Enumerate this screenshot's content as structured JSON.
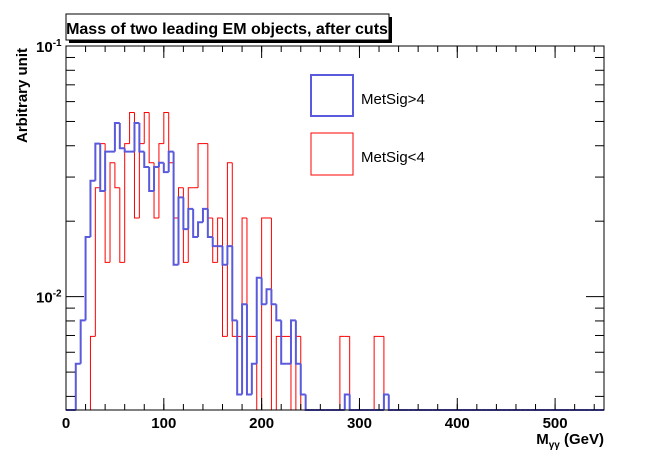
{
  "chart_data": {
    "type": "histogram",
    "title": "Mass of two leading EM objects, after cuts",
    "xlabel_main": "M",
    "xlabel_sub": "γγ",
    "xlabel_unit": " (GeV)",
    "ylabel": "Arbitrary unit",
    "xlim": [
      0,
      550
    ],
    "ylim": [
      0.00353,
      0.1
    ],
    "yscale": "log",
    "bin_width": 5,
    "x_ticks": [
      "0",
      "100",
      "200",
      "300",
      "400",
      "500"
    ],
    "x_tick_values": [
      0,
      100,
      200,
      300,
      400,
      500
    ],
    "y_ticks": [
      {
        "base": "10",
        "exp": "-1",
        "value": 0.1
      },
      {
        "base": "10",
        "exp": "-2",
        "value": 0.01
      }
    ],
    "legend_position": "top-center",
    "series": [
      {
        "name": "MetSig<4",
        "color": "#ff0000",
        "bin_start": 0,
        "values": [
          0,
          0,
          0,
          0,
          0,
          0.00694,
          0.0272,
          0.0408,
          0.0137,
          0.0342,
          0.0272,
          0.0137,
          0.0408,
          0.0543,
          0.0206,
          0.0408,
          0.0543,
          0.0342,
          0.0206,
          0.0408,
          0.0543,
          0.0342,
          0.0206,
          0.0272,
          0.0137,
          0.0272,
          0.0272,
          0.0408,
          0.0408,
          0.0206,
          0.0137,
          0.0206,
          0.00694,
          0.0342,
          0.00694,
          0.00694,
          0.0206,
          0.00694,
          0.00694,
          0,
          0.0206,
          0.0206,
          0,
          0.00694,
          0.00694,
          0.00694,
          0,
          0.00694,
          0,
          0,
          0,
          0,
          0,
          0,
          0,
          0,
          0.00694,
          0.00694,
          0,
          0,
          0,
          0,
          0,
          0.00694,
          0.00694,
          0
        ]
      },
      {
        "name": "MetSig>4",
        "color": "#5a5adc",
        "bin_start": 0,
        "values": [
          0,
          0,
          0.0054,
          0.00804,
          0.0173,
          0.029,
          0.0408,
          0.0264,
          0.0379,
          0.0379,
          0.0493,
          0.0391,
          0.0379,
          0.0379,
          0.0493,
          0.0379,
          0.0329,
          0.0264,
          0.0329,
          0.0342,
          0.0314,
          0.0379,
          0.0134,
          0.0249,
          0.0186,
          0.0224,
          0.0173,
          0.0198,
          0.0224,
          0.0173,
          0.0159,
          0.0159,
          0.0134,
          0.0159,
          0.00804,
          0.00407,
          0.00933,
          0.00407,
          0.0054,
          0.0119,
          0.00933,
          0.0107,
          0.00933,
          0.00804,
          0.0054,
          0.0054,
          0.00804,
          0.0054,
          0.00407,
          0,
          0,
          0,
          0,
          0,
          0,
          0,
          0,
          0.00407,
          0,
          0,
          0,
          0,
          0,
          0,
          0,
          0.00407,
          0
        ]
      }
    ]
  }
}
